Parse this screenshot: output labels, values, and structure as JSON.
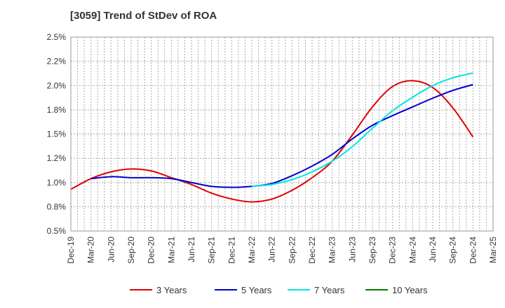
{
  "chart_data": {
    "type": "line",
    "title": "[3059]  Trend of StDev of ROA",
    "xlabel": "",
    "ylabel": "",
    "x": [
      "Dec-19",
      "Mar-20",
      "Jun-20",
      "Sep-20",
      "Dec-20",
      "Mar-21",
      "Jun-21",
      "Sep-21",
      "Dec-21",
      "Mar-22",
      "Jun-22",
      "Sep-22",
      "Dec-22",
      "Mar-23",
      "Jun-23",
      "Sep-23",
      "Dec-23",
      "Mar-24",
      "Jun-24",
      "Sep-24",
      "Dec-24",
      "Mar-25"
    ],
    "ylim": [
      0.5,
      2.5
    ],
    "yticks": [
      0.5,
      0.75,
      1.0,
      1.25,
      1.5,
      1.75,
      2.0,
      2.25,
      2.5
    ],
    "ytick_labels": [
      "0.5%",
      "0.8%",
      "1.0%",
      "1.2%",
      "1.5%",
      "1.8%",
      "2.0%",
      "2.2%",
      "2.5%"
    ],
    "grid": true,
    "legend_position": "bottom",
    "series": [
      {
        "name": "3 Years",
        "color": "#e00000",
        "values": [
          0.93,
          1.04,
          1.11,
          1.14,
          1.12,
          1.05,
          0.98,
          0.89,
          0.83,
          0.8,
          0.83,
          0.92,
          1.05,
          1.22,
          1.49,
          1.78,
          1.99,
          2.05,
          1.98,
          1.77,
          1.47,
          null
        ]
      },
      {
        "name": "5 Years",
        "color": "#0000cc",
        "values": [
          null,
          1.04,
          1.06,
          1.05,
          1.05,
          1.04,
          1.0,
          0.96,
          0.95,
          0.96,
          0.99,
          1.07,
          1.17,
          1.29,
          1.45,
          1.59,
          1.69,
          1.78,
          1.87,
          1.95,
          2.01,
          null
        ]
      },
      {
        "name": "7 Years",
        "color": "#00e5e5",
        "values": [
          null,
          null,
          null,
          null,
          null,
          null,
          null,
          null,
          null,
          0.96,
          0.98,
          1.03,
          1.11,
          1.22,
          1.37,
          1.56,
          1.74,
          1.88,
          2.0,
          2.08,
          2.13,
          null
        ]
      },
      {
        "name": "10 Years",
        "color": "#008000",
        "values": [
          null,
          null,
          null,
          null,
          null,
          null,
          null,
          null,
          null,
          null,
          null,
          null,
          null,
          null,
          null,
          null,
          null,
          null,
          null,
          null,
          null,
          null
        ]
      }
    ]
  }
}
